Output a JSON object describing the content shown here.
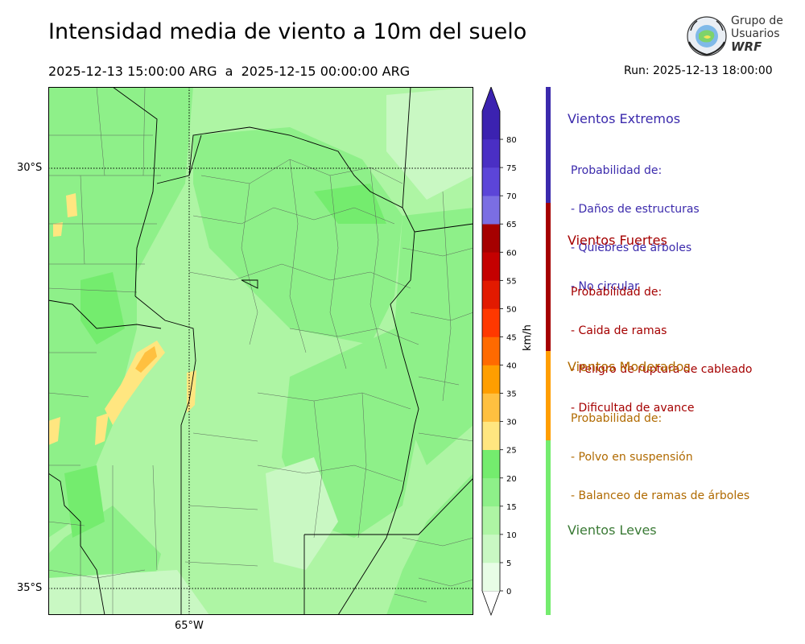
{
  "header": {
    "title": "Intensidad media de viento a 10m del suelo",
    "period": "2025-12-13 15:00:00 ARG  a  2025-12-15 00:00:00 ARG",
    "run": "Run: 2025-12-13 18:00:00"
  },
  "logo": {
    "line1": "Grupo de",
    "line2": "Usuarios",
    "line3": "WRF"
  },
  "map": {
    "lat_labels": [
      "30°S",
      "35°S"
    ],
    "lon_labels": [
      "65°W"
    ],
    "gridlines": "dotted"
  },
  "colorbar": {
    "unit": "km/h",
    "ticks": [
      "0",
      "5",
      "10",
      "15",
      "20",
      "25",
      "30",
      "35",
      "40",
      "45",
      "50",
      "55",
      "60",
      "65",
      "70",
      "75",
      "80"
    ],
    "colors": [
      "#e8fde6",
      "#c9f8c3",
      "#aef5a4",
      "#8ef089",
      "#74ec6e",
      "#ffe680",
      "#ffc040",
      "#ff9e00",
      "#ff6a00",
      "#ff3800",
      "#e21a00",
      "#c40000",
      "#a50000",
      "#7b6ee3",
      "#5c45d8",
      "#4a2fc4",
      "#3b22b0"
    ]
  },
  "categories": [
    {
      "title": "Vientos Extremos",
      "color": "#3b2aac",
      "lines": [
        "Probabilidad de:",
        "- Daños de estructuras",
        "- Quiebres de árboles",
        "- No circular"
      ]
    },
    {
      "title": "Vientos Fuertes",
      "color": "#a50000",
      "lines": [
        "Probabilidad de:",
        "- Caida de ramas",
        "- Peligro de ruptura de cableado",
        "- Dificultad de avance"
      ]
    },
    {
      "title": "Vientos Moderados",
      "color": "#b06a00",
      "lines": [
        "Probabilidad de:",
        "- Polvo en suspensión",
        "- Balanceo de ramas de árboles"
      ]
    },
    {
      "title": "Vientos Leves",
      "color": "#3a7a35",
      "lines": []
    }
  ],
  "legend_bar_colors": [
    "#3b2aac",
    "#a50000",
    "#ff9e00",
    "#74ec6e"
  ]
}
